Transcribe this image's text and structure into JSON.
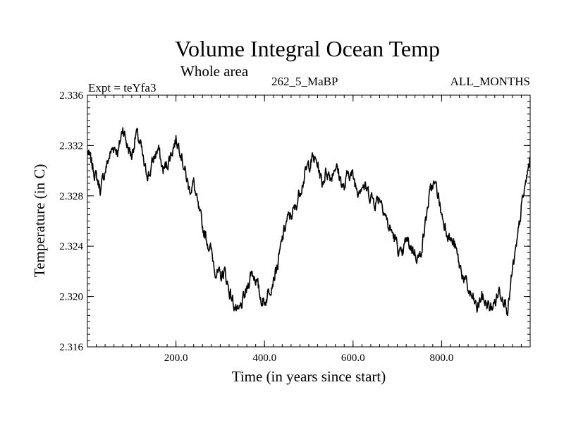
{
  "chart_data": {
    "type": "line",
    "title": "Volume Integral Ocean Temp",
    "subtitle": "Whole area",
    "experiment_label": "Expt = teYfa3",
    "run_label": "262_5_MaBP",
    "months_label": "ALL_MONTHS",
    "xlabel": "Time (in years since start)",
    "ylabel": "Temperature (in C)",
    "xlim": [
      0,
      1000
    ],
    "ylim": [
      2.316,
      2.336
    ],
    "x_ticks": [
      200,
      400,
      600,
      800
    ],
    "x_tick_labels": [
      "200.0",
      "400.0",
      "600.0",
      "800.0"
    ],
    "y_ticks": [
      2.316,
      2.32,
      2.324,
      2.328,
      2.332,
      2.336
    ],
    "y_tick_labels": [
      "2.316",
      "2.320",
      "2.324",
      "2.328",
      "2.332",
      "2.336"
    ],
    "grid": false,
    "series": [
      {
        "name": "Volume integral ocean temperature",
        "color": "#000000",
        "x": [
          0,
          10,
          20,
          30,
          40,
          50,
          60,
          70,
          80,
          90,
          100,
          110,
          120,
          130,
          140,
          150,
          160,
          170,
          180,
          190,
          200,
          210,
          220,
          230,
          240,
          250,
          260,
          270,
          280,
          290,
          300,
          310,
          320,
          330,
          340,
          350,
          360,
          370,
          380,
          390,
          400,
          410,
          420,
          430,
          440,
          450,
          460,
          470,
          480,
          490,
          500,
          510,
          520,
          530,
          540,
          550,
          560,
          570,
          580,
          590,
          600,
          610,
          620,
          630,
          640,
          650,
          660,
          670,
          680,
          690,
          700,
          710,
          720,
          730,
          740,
          750,
          760,
          770,
          780,
          790,
          800,
          810,
          820,
          830,
          840,
          850,
          860,
          870,
          880,
          890,
          900,
          910,
          920,
          930,
          940,
          950,
          960,
          970,
          980,
          990,
          1000
        ],
        "values": [
          2.3315,
          2.3305,
          2.3295,
          2.3285,
          2.33,
          2.3312,
          2.332,
          2.3315,
          2.3335,
          2.332,
          2.3312,
          2.333,
          2.332,
          2.33,
          2.3297,
          2.331,
          2.3318,
          2.33,
          2.3305,
          2.3315,
          2.3325,
          2.3318,
          2.33,
          2.3285,
          2.329,
          2.327,
          2.3255,
          2.3245,
          2.3235,
          2.322,
          2.3215,
          2.322,
          2.3205,
          2.3195,
          2.3185,
          2.3195,
          2.3205,
          2.322,
          2.3215,
          2.32,
          2.3195,
          2.3205,
          2.3215,
          2.3225,
          2.3245,
          2.326,
          2.3265,
          2.327,
          2.3285,
          2.3295,
          2.3305,
          2.331,
          2.3305,
          2.329,
          2.33,
          2.3295,
          2.3305,
          2.3295,
          2.3285,
          2.33,
          2.3295,
          2.3285,
          2.329,
          2.3285,
          2.328,
          2.3275,
          2.328,
          2.327,
          2.3255,
          2.325,
          2.324,
          2.323,
          2.3245,
          2.324,
          2.3235,
          2.323,
          2.325,
          2.3275,
          2.329,
          2.3285,
          2.3265,
          2.3255,
          2.3245,
          2.324,
          2.3225,
          2.3215,
          2.3205,
          2.3198,
          2.319,
          2.32,
          2.3195,
          2.319,
          2.3195,
          2.3205,
          2.32,
          2.319,
          2.322,
          2.324,
          2.327,
          2.329,
          2.331
        ]
      }
    ]
  }
}
